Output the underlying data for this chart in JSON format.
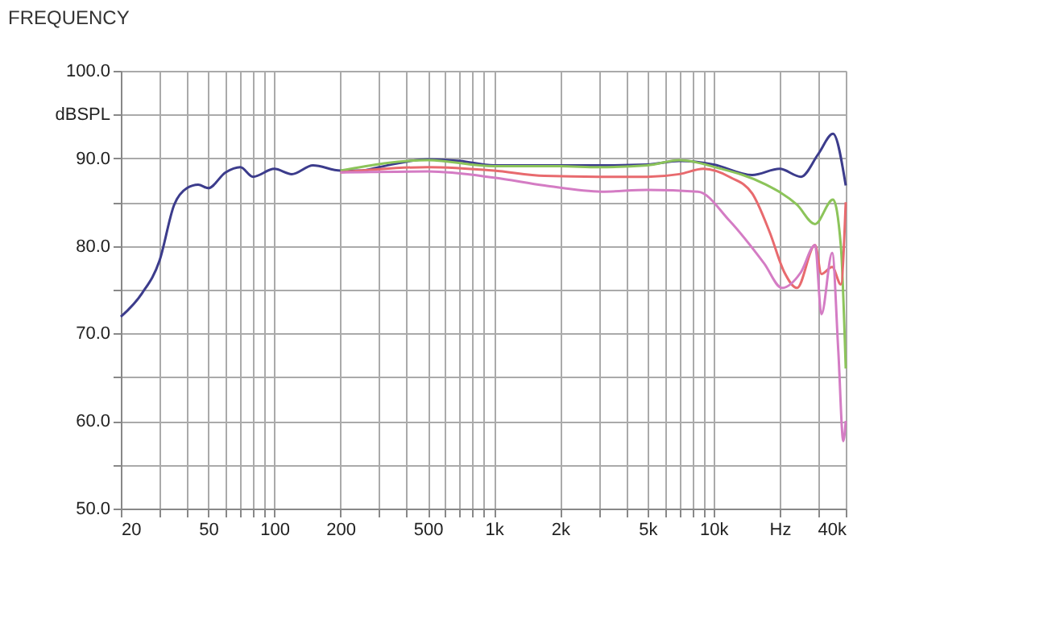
{
  "chart_data": {
    "type": "line",
    "title": "FREQUENCY",
    "series": [
      {
        "color": "#3c3c8c",
        "x": [
          20,
          25,
          30,
          35,
          40,
          45,
          50,
          60,
          70,
          80,
          100,
          120,
          150,
          200,
          250,
          300,
          500,
          700,
          1000,
          2000,
          3000,
          5000,
          7000,
          10000,
          15000,
          20000,
          25000,
          30000,
          35000,
          40000
        ],
        "values": [
          71.9,
          74.6,
          78.3,
          84.7,
          86.6,
          87.0,
          86.6,
          88.4,
          89.0,
          87.9,
          88.8,
          88.2,
          89.2,
          88.6,
          88.6,
          89.0,
          89.9,
          89.7,
          89.2,
          89.2,
          89.2,
          89.3,
          89.7,
          89.3,
          88.1,
          88.8,
          87.9,
          90.5,
          92.8,
          86.9
        ]
      },
      {
        "color": "#8cc45a",
        "x": [
          200,
          500,
          1000,
          2000,
          3000,
          5000,
          7000,
          10500,
          17000,
          24000,
          29000,
          35000,
          38000,
          40000
        ],
        "values": [
          88.6,
          89.8,
          89.1,
          89.1,
          89.0,
          89.2,
          89.8,
          88.9,
          87.1,
          84.7,
          82.5,
          85.3,
          80.0,
          66.0
        ]
      },
      {
        "color": "#e86a6e",
        "x": [
          200,
          500,
          1000,
          1700,
          3000,
          5000,
          7000,
          9000,
          12000,
          15000,
          18000,
          21000,
          24000,
          29000,
          31000,
          34700,
          38000,
          40000
        ],
        "values": [
          88.4,
          89.0,
          88.6,
          88.0,
          87.9,
          87.9,
          88.2,
          88.8,
          87.8,
          86.0,
          81.6,
          77.0,
          75.2,
          80.1,
          76.8,
          77.6,
          75.6,
          85.0
        ]
      },
      {
        "color": "#d47cc4",
        "x": [
          200,
          500,
          1000,
          1700,
          3100,
          5000,
          8500,
          11800,
          17000,
          20500,
          25000,
          29000,
          31000,
          34700,
          37000,
          39000,
          40000
        ],
        "values": [
          88.4,
          88.5,
          87.8,
          86.9,
          86.2,
          86.4,
          86.2,
          82.9,
          78.0,
          75.2,
          77.0,
          80.1,
          72.2,
          79.2,
          68.0,
          57.7,
          60.0
        ]
      }
    ],
    "xlim": [
      20,
      40000
    ],
    "xticks": [
      20,
      {
        "value": 30,
        "label": null
      },
      {
        "value": 40,
        "label": null
      },
      50,
      {
        "value": 60,
        "label": null
      },
      {
        "value": 70,
        "label": null
      },
      {
        "value": 80,
        "label": null
      },
      {
        "value": 90,
        "label": null
      },
      100,
      200,
      {
        "value": 300,
        "label": null
      },
      {
        "value": 400,
        "label": null
      },
      500,
      {
        "value": 600,
        "label": null
      },
      {
        "value": 700,
        "label": null
      },
      {
        "value": 800,
        "label": null
      },
      {
        "value": 900,
        "label": null
      },
      {
        "value": 1000,
        "label": "1k"
      },
      {
        "value": 2000,
        "label": "2k"
      },
      {
        "value": 3000,
        "label": null
      },
      {
        "value": 4000,
        "label": null
      },
      {
        "value": 5000,
        "label": "5k"
      },
      {
        "value": 6000,
        "label": null
      },
      {
        "value": 7000,
        "label": null
      },
      {
        "value": 8000,
        "label": null
      },
      {
        "value": 9000,
        "label": null
      },
      {
        "value": 10000,
        "label": "10k"
      },
      {
        "value": 20000,
        "label": "Hz"
      },
      {
        "value": 30000,
        "label": null
      },
      {
        "value": 40000,
        "label": "40k"
      }
    ],
    "ylim": [
      50,
      100
    ],
    "yticks": [
      {
        "value": 50,
        "label": "50.0"
      },
      {
        "value": 55,
        "label": null
      },
      {
        "value": 60,
        "label": "60.0"
      },
      {
        "value": 65,
        "label": null
      },
      {
        "value": 70,
        "label": "70.0"
      },
      {
        "value": 75,
        "label": null
      },
      {
        "value": 80,
        "label": "80.0"
      },
      {
        "value": 85,
        "label": null
      },
      {
        "value": 90,
        "label": "90.0"
      },
      {
        "value": 95,
        "label": "dBSPL"
      },
      {
        "value": 100,
        "label": "100.0"
      }
    ],
    "log": "x",
    "grid": true,
    "legend": false,
    "line_style": "solid",
    "marker": "none"
  }
}
